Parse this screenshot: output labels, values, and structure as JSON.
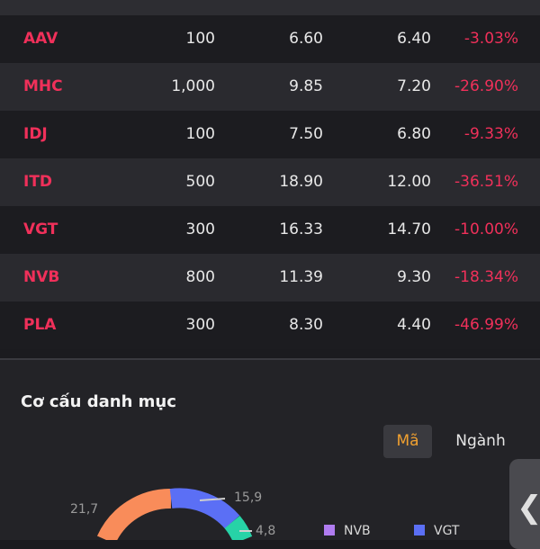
{
  "rows": [
    {
      "code": "AAV",
      "qty": "100",
      "cost": "6.60",
      "price": "6.40",
      "pct": "-3.03%"
    },
    {
      "code": "MHC",
      "qty": "1,000",
      "cost": "9.85",
      "price": "7.20",
      "pct": "-26.90%"
    },
    {
      "code": "IDJ",
      "qty": "100",
      "cost": "7.50",
      "price": "6.80",
      "pct": "-9.33%"
    },
    {
      "code": "ITD",
      "qty": "500",
      "cost": "18.90",
      "price": "12.00",
      "pct": "-36.51%"
    },
    {
      "code": "VGT",
      "qty": "300",
      "cost": "16.33",
      "price": "14.70",
      "pct": "-10.00%"
    },
    {
      "code": "NVB",
      "qty": "800",
      "cost": "11.39",
      "price": "9.30",
      "pct": "-18.34%"
    },
    {
      "code": "PLA",
      "qty": "300",
      "cost": "8.30",
      "price": "4.40",
      "pct": "-46.99%"
    }
  ],
  "portfolio": {
    "title": "Cơ cấu danh mục",
    "toggle_code": "Mã",
    "toggle_sector": "Ngành"
  },
  "chart_data": {
    "type": "pie",
    "labels_visible": [
      "21,7",
      "15,9",
      "4,8"
    ],
    "slices": [
      {
        "value": 21.7,
        "color": "#f98c5a"
      },
      {
        "value": 15.9,
        "color": "#5b6ff5"
      },
      {
        "value": 4.8,
        "color": "#27d3a7"
      }
    ],
    "legend": [
      {
        "name": "NVB",
        "color": "#b07cf0"
      },
      {
        "name": "VGT",
        "color": "#5b6ff5"
      }
    ]
  },
  "side_tab_glyph": "❮",
  "colors": {
    "loss": "#f0305a",
    "accent": "#f0a030"
  }
}
